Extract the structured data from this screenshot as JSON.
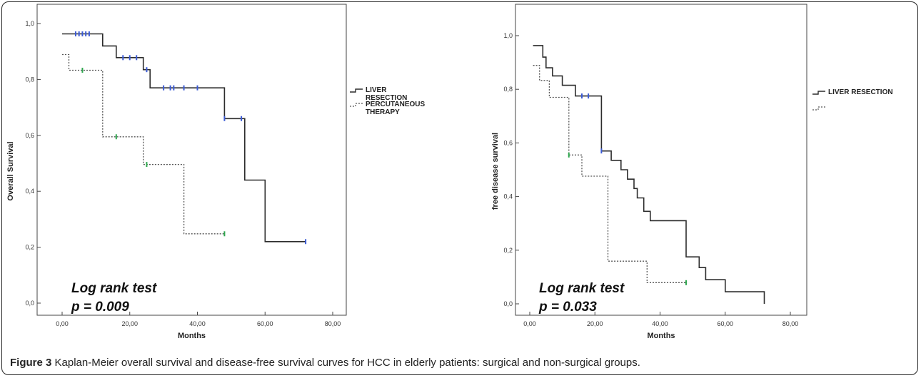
{
  "figure": {
    "caption_label": "Figure 3",
    "caption_text": " Kaplan-Meier overall survival and disease-free survival curves for HCC in elderly patients: surgical and non-surgical groups."
  },
  "colors": {
    "solid": "#2c2c2c",
    "dotted": "#555555",
    "censor_solid": "#3b5bd6",
    "censor_dotted": "#2fa84f",
    "axis": "#444444"
  },
  "chart_data": [
    {
      "type": "line",
      "subtype": "kaplan-meier",
      "xlabel": "Months",
      "ylabel": "Overall Survival",
      "xlim": [
        0,
        80
      ],
      "ylim": [
        0,
        1
      ],
      "xticks": [
        "0,00",
        "20,00",
        "40,00",
        "60,00",
        "80,00"
      ],
      "yticks": [
        "0,0",
        "0,2",
        "0,4",
        "0,6",
        "0,8",
        "1,0"
      ],
      "annotation_line1": "Log rank test",
      "annotation_line2": "p = 0.009",
      "grid": false,
      "legend_position": "right",
      "series": [
        {
          "name": "LIVER RESECTION",
          "style": "solid",
          "steps": [
            [
              0,
              0.963
            ],
            [
              12,
              0.963
            ],
            [
              12,
              0.92
            ],
            [
              16,
              0.92
            ],
            [
              16,
              0.878
            ],
            [
              24,
              0.878
            ],
            [
              24,
              0.835
            ],
            [
              26,
              0.835
            ],
            [
              26,
              0.77
            ],
            [
              48,
              0.77
            ],
            [
              48,
              0.66
            ],
            [
              54,
              0.66
            ],
            [
              54,
              0.44
            ],
            [
              60,
              0.44
            ],
            [
              60,
              0.22
            ],
            [
              72,
              0.22
            ]
          ],
          "censored": [
            [
              4,
              0.963
            ],
            [
              5,
              0.963
            ],
            [
              6,
              0.963
            ],
            [
              7,
              0.963
            ],
            [
              8,
              0.963
            ],
            [
              18,
              0.878
            ],
            [
              20,
              0.878
            ],
            [
              22,
              0.878
            ],
            [
              25,
              0.835
            ],
            [
              30,
              0.77
            ],
            [
              32,
              0.77
            ],
            [
              33,
              0.77
            ],
            [
              36,
              0.77
            ],
            [
              40,
              0.77
            ],
            [
              48,
              0.66
            ],
            [
              53,
              0.66
            ],
            [
              72,
              0.22
            ]
          ]
        },
        {
          "name": "PERCUTANEOUS THERAPY",
          "style": "dotted",
          "steps": [
            [
              0,
              0.889
            ],
            [
              2,
              0.889
            ],
            [
              2,
              0.833
            ],
            [
              12,
              0.833
            ],
            [
              12,
              0.595
            ],
            [
              24,
              0.595
            ],
            [
              24,
              0.496
            ],
            [
              36,
              0.496
            ],
            [
              36,
              0.248
            ],
            [
              48,
              0.248
            ]
          ],
          "censored": [
            [
              6,
              0.833
            ],
            [
              16,
              0.595
            ],
            [
              25,
              0.496
            ],
            [
              48,
              0.248
            ]
          ]
        }
      ]
    },
    {
      "type": "line",
      "subtype": "kaplan-meier",
      "xlabel": "Months",
      "ylabel": "free disease survival",
      "xlim": [
        0,
        80
      ],
      "ylim": [
        0,
        1
      ],
      "xticks": [
        "0,00",
        "20,00",
        "40,00",
        "60,00",
        "80,00"
      ],
      "yticks": [
        "0,0",
        "0,2",
        "0,4",
        "0,6",
        "0,8",
        "1,0"
      ],
      "annotation_line1": "Log rank test",
      "annotation_line2": "p = 0.033",
      "grid": false,
      "legend_position": "right",
      "series": [
        {
          "name": "LIVER RESECTION",
          "style": "solid",
          "steps": [
            [
              1,
              0.963
            ],
            [
              4,
              0.963
            ],
            [
              4,
              0.92
            ],
            [
              5,
              0.92
            ],
            [
              5,
              0.88
            ],
            [
              7,
              0.88
            ],
            [
              7,
              0.85
            ],
            [
              10,
              0.85
            ],
            [
              10,
              0.815
            ],
            [
              14,
              0.815
            ],
            [
              14,
              0.775
            ],
            [
              22,
              0.775
            ],
            [
              22,
              0.57
            ],
            [
              25,
              0.57
            ],
            [
              25,
              0.535
            ],
            [
              28,
              0.535
            ],
            [
              28,
              0.5
            ],
            [
              30,
              0.5
            ],
            [
              30,
              0.465
            ],
            [
              32,
              0.465
            ],
            [
              32,
              0.43
            ],
            [
              33,
              0.43
            ],
            [
              33,
              0.395
            ],
            [
              35,
              0.395
            ],
            [
              35,
              0.345
            ],
            [
              37,
              0.345
            ],
            [
              37,
              0.31
            ],
            [
              48,
              0.31
            ],
            [
              48,
              0.175
            ],
            [
              52,
              0.175
            ],
            [
              52,
              0.135
            ],
            [
              54,
              0.135
            ],
            [
              54,
              0.09
            ],
            [
              60,
              0.09
            ],
            [
              60,
              0.045
            ],
            [
              72,
              0.045
            ],
            [
              72,
              0.0
            ]
          ],
          "censored": [
            [
              16,
              0.775
            ],
            [
              18,
              0.775
            ],
            [
              22,
              0.57
            ]
          ]
        },
        {
          "name": "",
          "style": "dotted",
          "steps": [
            [
              1,
              0.889
            ],
            [
              3,
              0.889
            ],
            [
              3,
              0.833
            ],
            [
              6,
              0.833
            ],
            [
              6,
              0.77
            ],
            [
              12,
              0.77
            ],
            [
              12,
              0.555
            ],
            [
              16,
              0.555
            ],
            [
              16,
              0.476
            ],
            [
              24,
              0.476
            ],
            [
              24,
              0.159
            ],
            [
              36,
              0.159
            ],
            [
              36,
              0.079
            ],
            [
              48,
              0.079
            ]
          ],
          "censored": [
            [
              12,
              0.555
            ],
            [
              48,
              0.079
            ]
          ]
        }
      ]
    }
  ]
}
